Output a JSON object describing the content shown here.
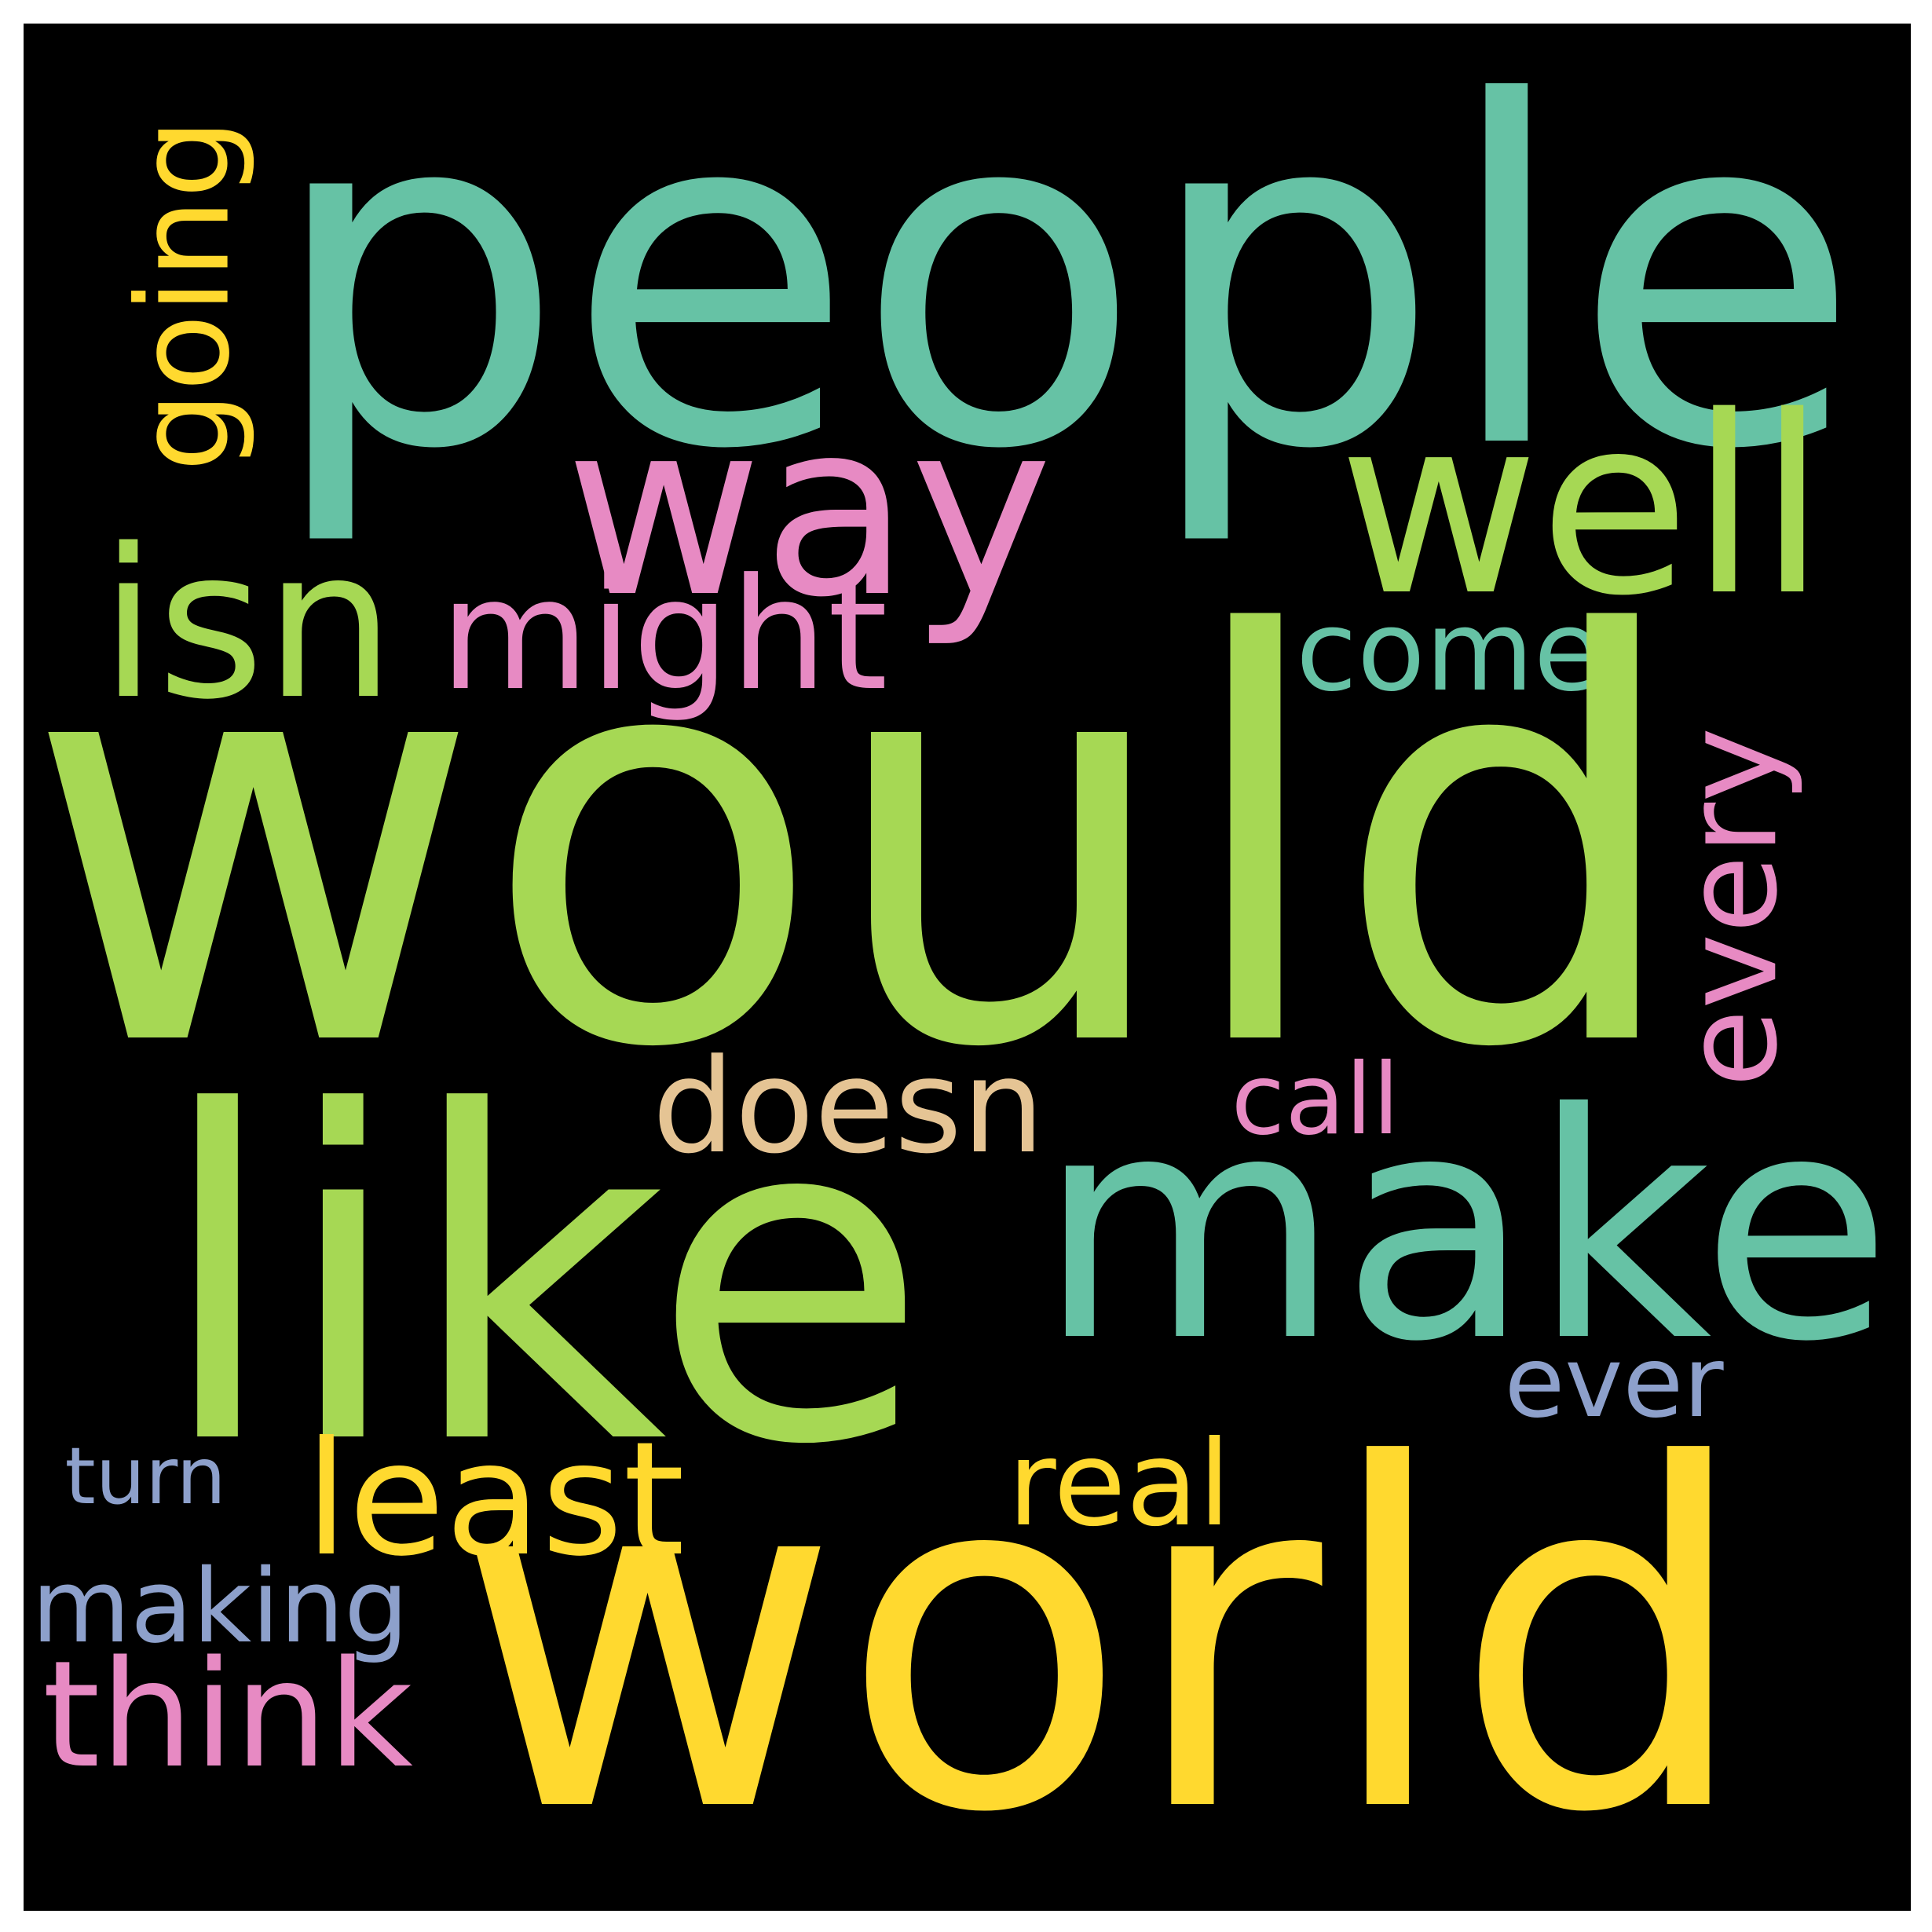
{
  "background": "#000000",
  "frame": "#ffffff",
  "words": [
    {
      "id": "people",
      "text": "people",
      "color": "#66c2a5",
      "orientation": "horizontal"
    },
    {
      "id": "way",
      "text": "way",
      "color": "#e78ac3",
      "orientation": "horizontal"
    },
    {
      "id": "well",
      "text": "well",
      "color": "#a6d854",
      "orientation": "horizontal"
    },
    {
      "id": "going",
      "text": "going",
      "color": "#ffd92f",
      "orientation": "vertical"
    },
    {
      "id": "isn",
      "text": "isn",
      "color": "#a6d854",
      "orientation": "horizontal"
    },
    {
      "id": "might",
      "text": "might",
      "color": "#e78ac3",
      "orientation": "horizontal"
    },
    {
      "id": "come",
      "text": "come",
      "color": "#66c2a5",
      "orientation": "horizontal"
    },
    {
      "id": "would",
      "text": "would",
      "color": "#a6d854",
      "orientation": "horizontal"
    },
    {
      "id": "every",
      "text": "every",
      "color": "#e78ac3",
      "orientation": "vertical"
    },
    {
      "id": "doesn",
      "text": "doesn",
      "color": "#e5c494",
      "orientation": "horizontal"
    },
    {
      "id": "call",
      "text": "call",
      "color": "#e78ac3",
      "orientation": "horizontal"
    },
    {
      "id": "like",
      "text": "like",
      "color": "#a6d854",
      "orientation": "horizontal"
    },
    {
      "id": "make",
      "text": "make",
      "color": "#66c2a5",
      "orientation": "horizontal"
    },
    {
      "id": "ever",
      "text": "ever",
      "color": "#8da0cb",
      "orientation": "horizontal"
    },
    {
      "id": "turn",
      "text": "turn",
      "color": "#8da0cb",
      "orientation": "horizontal"
    },
    {
      "id": "least",
      "text": "least",
      "color": "#ffd92f",
      "orientation": "horizontal"
    },
    {
      "id": "real",
      "text": "real",
      "color": "#ffd92f",
      "orientation": "horizontal"
    },
    {
      "id": "making",
      "text": "making",
      "color": "#8da0cb",
      "orientation": "horizontal"
    },
    {
      "id": "world",
      "text": "world",
      "color": "#ffd92f",
      "orientation": "horizontal"
    },
    {
      "id": "think",
      "text": "think",
      "color": "#e78ac3",
      "orientation": "horizontal"
    }
  ]
}
